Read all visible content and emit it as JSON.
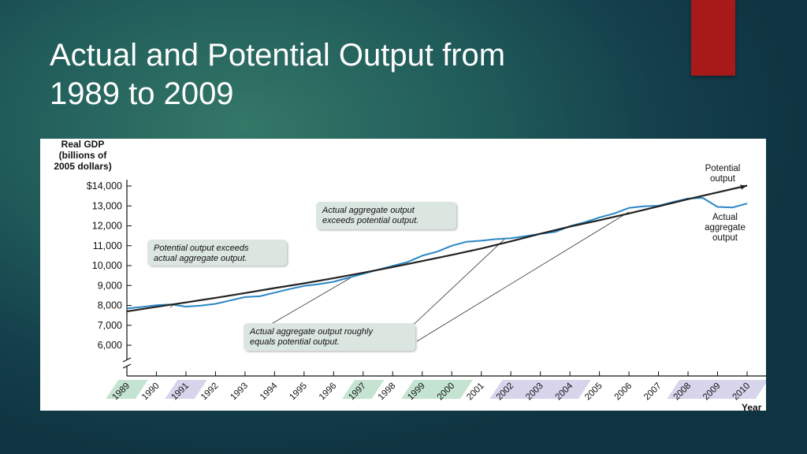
{
  "slide": {
    "title_line1": "Actual and Potential Output from",
    "title_line2": "1989 to 2009",
    "accent_color": "#a81a1a"
  },
  "chart_data": {
    "type": "line",
    "ylabel": [
      "Real GDP",
      "(billions of",
      "2005 dollars)"
    ],
    "xlabel": "Year",
    "ylim": [
      6000,
      14000
    ],
    "y_ticks": [
      {
        "value": 14000,
        "label": "$14,000"
      },
      {
        "value": 13000,
        "label": "13,000"
      },
      {
        "value": 12000,
        "label": "12,000"
      },
      {
        "value": 11000,
        "label": "11,000"
      },
      {
        "value": 10000,
        "label": "10,000"
      },
      {
        "value": 9000,
        "label": "9,000"
      },
      {
        "value": 8000,
        "label": "8,000"
      },
      {
        "value": 7000,
        "label": "7,000"
      },
      {
        "value": 6000,
        "label": "6,000"
      }
    ],
    "axis_break": true,
    "xlim": [
      1989,
      2010
    ],
    "x_ticks": [
      "1989",
      "1990",
      "1991",
      "1992",
      "1993",
      "1994",
      "1995",
      "1996",
      "1997",
      "1998",
      "1999",
      "2000",
      "2001",
      "2002",
      "2003",
      "2004",
      "2005",
      "2006",
      "2007",
      "2008",
      "2009",
      "2010"
    ],
    "recession_years": [
      "1989",
      "1991",
      "1997",
      "1999",
      "2000",
      "2002",
      "2003",
      "2004",
      "2008",
      "2009",
      "2010"
    ],
    "colors": {
      "potential": "#222222",
      "actual": "#2a86c4",
      "annotation_box": "#dce6e1",
      "recession_band_green": "#c4e3d0",
      "recession_band_purple": "#d7d4ec"
    },
    "series": [
      {
        "name": "Potential output",
        "label_lines": [
          "Potential",
          "output"
        ],
        "x": [
          1989,
          1990,
          1991,
          1992,
          1993,
          1994,
          1995,
          1996,
          1997,
          1998,
          1999,
          2000,
          2001,
          2002,
          2003,
          2004,
          2005,
          2006,
          2007,
          2008,
          2009,
          2010
        ],
        "y": [
          7700,
          7930,
          8150,
          8380,
          8620,
          8870,
          9110,
          9370,
          9640,
          9930,
          10230,
          10540,
          10860,
          11220,
          11600,
          11960,
          12280,
          12620,
          12980,
          13340,
          13680,
          14020
        ]
      },
      {
        "name": "Actual aggregate output",
        "label_lines": [
          "Actual",
          "aggregate",
          "output"
        ],
        "x": [
          1989,
          1989.5,
          1990,
          1990.5,
          1991,
          1991.5,
          1992,
          1992.5,
          1993,
          1993.5,
          1994,
          1994.5,
          1995,
          1995.5,
          1996,
          1996.5,
          1997,
          1997.5,
          1998,
          1998.5,
          1999,
          1999.5,
          2000,
          2000.5,
          2001,
          2001.5,
          2002,
          2002.5,
          2003,
          2003.5,
          2004,
          2004.5,
          2005,
          2005.5,
          2006,
          2006.5,
          2007,
          2007.5,
          2008,
          2008.5,
          2009,
          2009.5,
          2010
        ],
        "y": [
          7850,
          7920,
          8010,
          8050,
          7940,
          7990,
          8080,
          8250,
          8420,
          8460,
          8640,
          8820,
          8980,
          9070,
          9190,
          9390,
          9590,
          9790,
          9990,
          10180,
          10500,
          10700,
          11000,
          11200,
          11250,
          11330,
          11380,
          11480,
          11600,
          11690,
          11980,
          12180,
          12420,
          12620,
          12900,
          12980,
          13010,
          13200,
          13370,
          13400,
          12950,
          12920,
          13120
        ]
      }
    ],
    "annotations": [
      {
        "lines": [
          "Potential output exceeds",
          "actual aggregate output."
        ]
      },
      {
        "lines": [
          "Actual aggregate output",
          "exceeds potential output."
        ]
      },
      {
        "lines": [
          "Actual aggregate output roughly",
          "equals potential output."
        ]
      }
    ],
    "crossing_points": [
      {
        "x": 1990.6,
        "y": 8060
      },
      {
        "x": 1996.8,
        "y": 9580
      },
      {
        "x": 2001.8,
        "y": 11350
      },
      {
        "x": 2006,
        "y": 12700
      }
    ]
  }
}
